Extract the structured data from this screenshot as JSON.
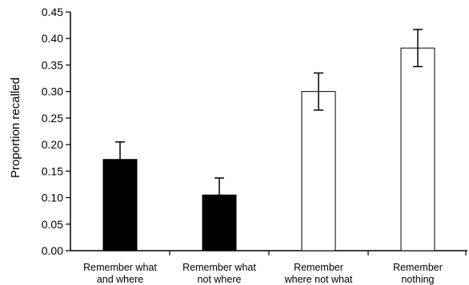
{
  "chart_data": {
    "type": "bar",
    "title": "",
    "xlabel": "",
    "ylabel": "Proportion recalled",
    "ylim": [
      0,
      0.45
    ],
    "yticks": [
      "0.00",
      "0.05",
      "0.10",
      "0.15",
      "0.20",
      "0.25",
      "0.30",
      "0.35",
      "0.40",
      "0.45"
    ],
    "categories": [
      [
        "Remember what",
        "and where"
      ],
      [
        "Remember what",
        "not where"
      ],
      [
        "Remember",
        "where not what"
      ],
      [
        "Remember",
        "nothing"
      ]
    ],
    "values": [
      0.172,
      0.105,
      0.3,
      0.382
    ],
    "errors": [
      0.033,
      0.032,
      0.035,
      0.035
    ],
    "fills": [
      "#000000",
      "#000000",
      "#ffffff",
      "#ffffff"
    ],
    "grid": false,
    "legend": "none"
  }
}
